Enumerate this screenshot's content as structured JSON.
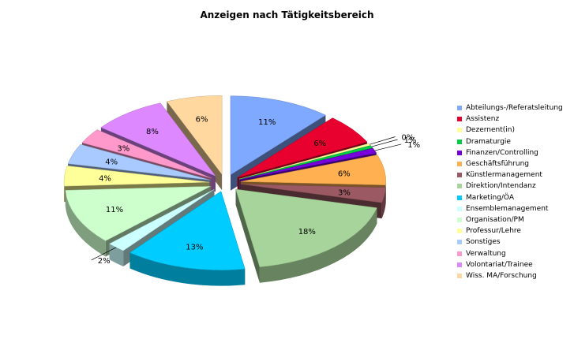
{
  "chart_data": {
    "type": "pie",
    "title": "Anzeigen nach Tätigkeitsbereich",
    "three_d": true,
    "exploded": true,
    "legend_position": "right",
    "categories": [
      "Abteilungs-/Referatsleitung",
      "Assistenz",
      "Dezernent(in)",
      "Dramaturgie",
      "Finanzen/Controlling",
      "Geschäftsführung",
      "Künstlermanagement",
      "Direktion/Intendanz",
      "Marketing/ÖA",
      "Ensemblemanagement",
      "Organisation/PM",
      "Professur/Lehre",
      "Sonstiges",
      "Verwaltung",
      "Volontariat/Trainee",
      "Wiss. MA/Forschung"
    ],
    "values": [
      11,
      6,
      0.4,
      0.5,
      1,
      6,
      3,
      18,
      13,
      2,
      11,
      4,
      4,
      3,
      8,
      6
    ],
    "labels": [
      "11%",
      "6%",
      "0%",
      "1%",
      "1%",
      "6%",
      "3%",
      "18%",
      "13%",
      "2%",
      "11%",
      "4%",
      "4%",
      "3%",
      "8%",
      "6%"
    ],
    "colors": [
      "#7fa8ff",
      "#e8002e",
      "#ffff99",
      "#00cc44",
      "#7700dd",
      "#ffb050",
      "#9b5a63",
      "#a6d49a",
      "#00ccff",
      "#ccffff",
      "#ccffcc",
      "#ffff99",
      "#a9caff",
      "#ff99cc",
      "#dd88ff",
      "#ffd8a0"
    ]
  }
}
